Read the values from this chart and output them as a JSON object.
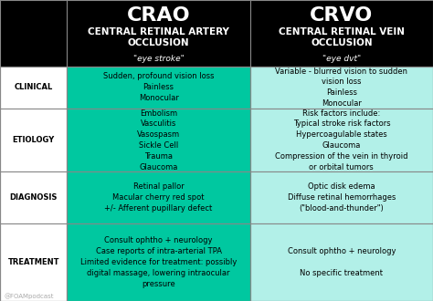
{
  "title_left": "CRAO",
  "title_right": "CRVO",
  "subtitle_left": "CENTRAL RETINAL ARTERY\nOCCLUSION",
  "subtitle_right": "CENTRAL RETINAL VEIN\nOCCLUSION",
  "tagline_left": "\"eye stroke\"",
  "tagline_right": "\"eye dvt\"",
  "header_bg": "#000000",
  "header_text_color": "#ffffff",
  "row_label_color": "#000000",
  "row_label_bg": "#ffffff",
  "crao_cell_bg": "#00c8a0",
  "crvo_cell_bg": "#b2f0e8",
  "cell_text_color": "#000000",
  "border_color": "#888888",
  "watermark": "@FOAMpodcast",
  "rows": [
    {
      "label": "CLINICAL",
      "crao": "Sudden, profound vision loss\nPainless\nMonocular",
      "crvo": "Variable - blurred vision to sudden\nvision loss\nPainless\nMonocular"
    },
    {
      "label": "ETIOLOGY",
      "crao": "Embolism\nVasculitis\nVasospasm\nSickle Cell\nTrauma\nGlaucoma",
      "crvo": "Risk factors include:\nTypical stroke risk factors\nHypercoagulable states\nGlaucoma\nCompression of the vein in thyroid\nor orbital tumors"
    },
    {
      "label": "DIAGNOSIS",
      "crao": "Retinal pallor\nMacular cherry red spot\n+/- Afferent pupillary defect",
      "crvo": "Optic disk edema\nDiffuse retinal hemorrhages\n(\"blood-and-thunder\")"
    },
    {
      "label": "TREATMENT",
      "crao": "Consult ophtho + neurology\nCase reports of intra-arterial TPA\nLimited evidence for treatment: possibly\ndigital massage, lowering intraocular\npressure",
      "crvo": "Consult ophtho + neurology\n\nNo specific treatment"
    }
  ]
}
